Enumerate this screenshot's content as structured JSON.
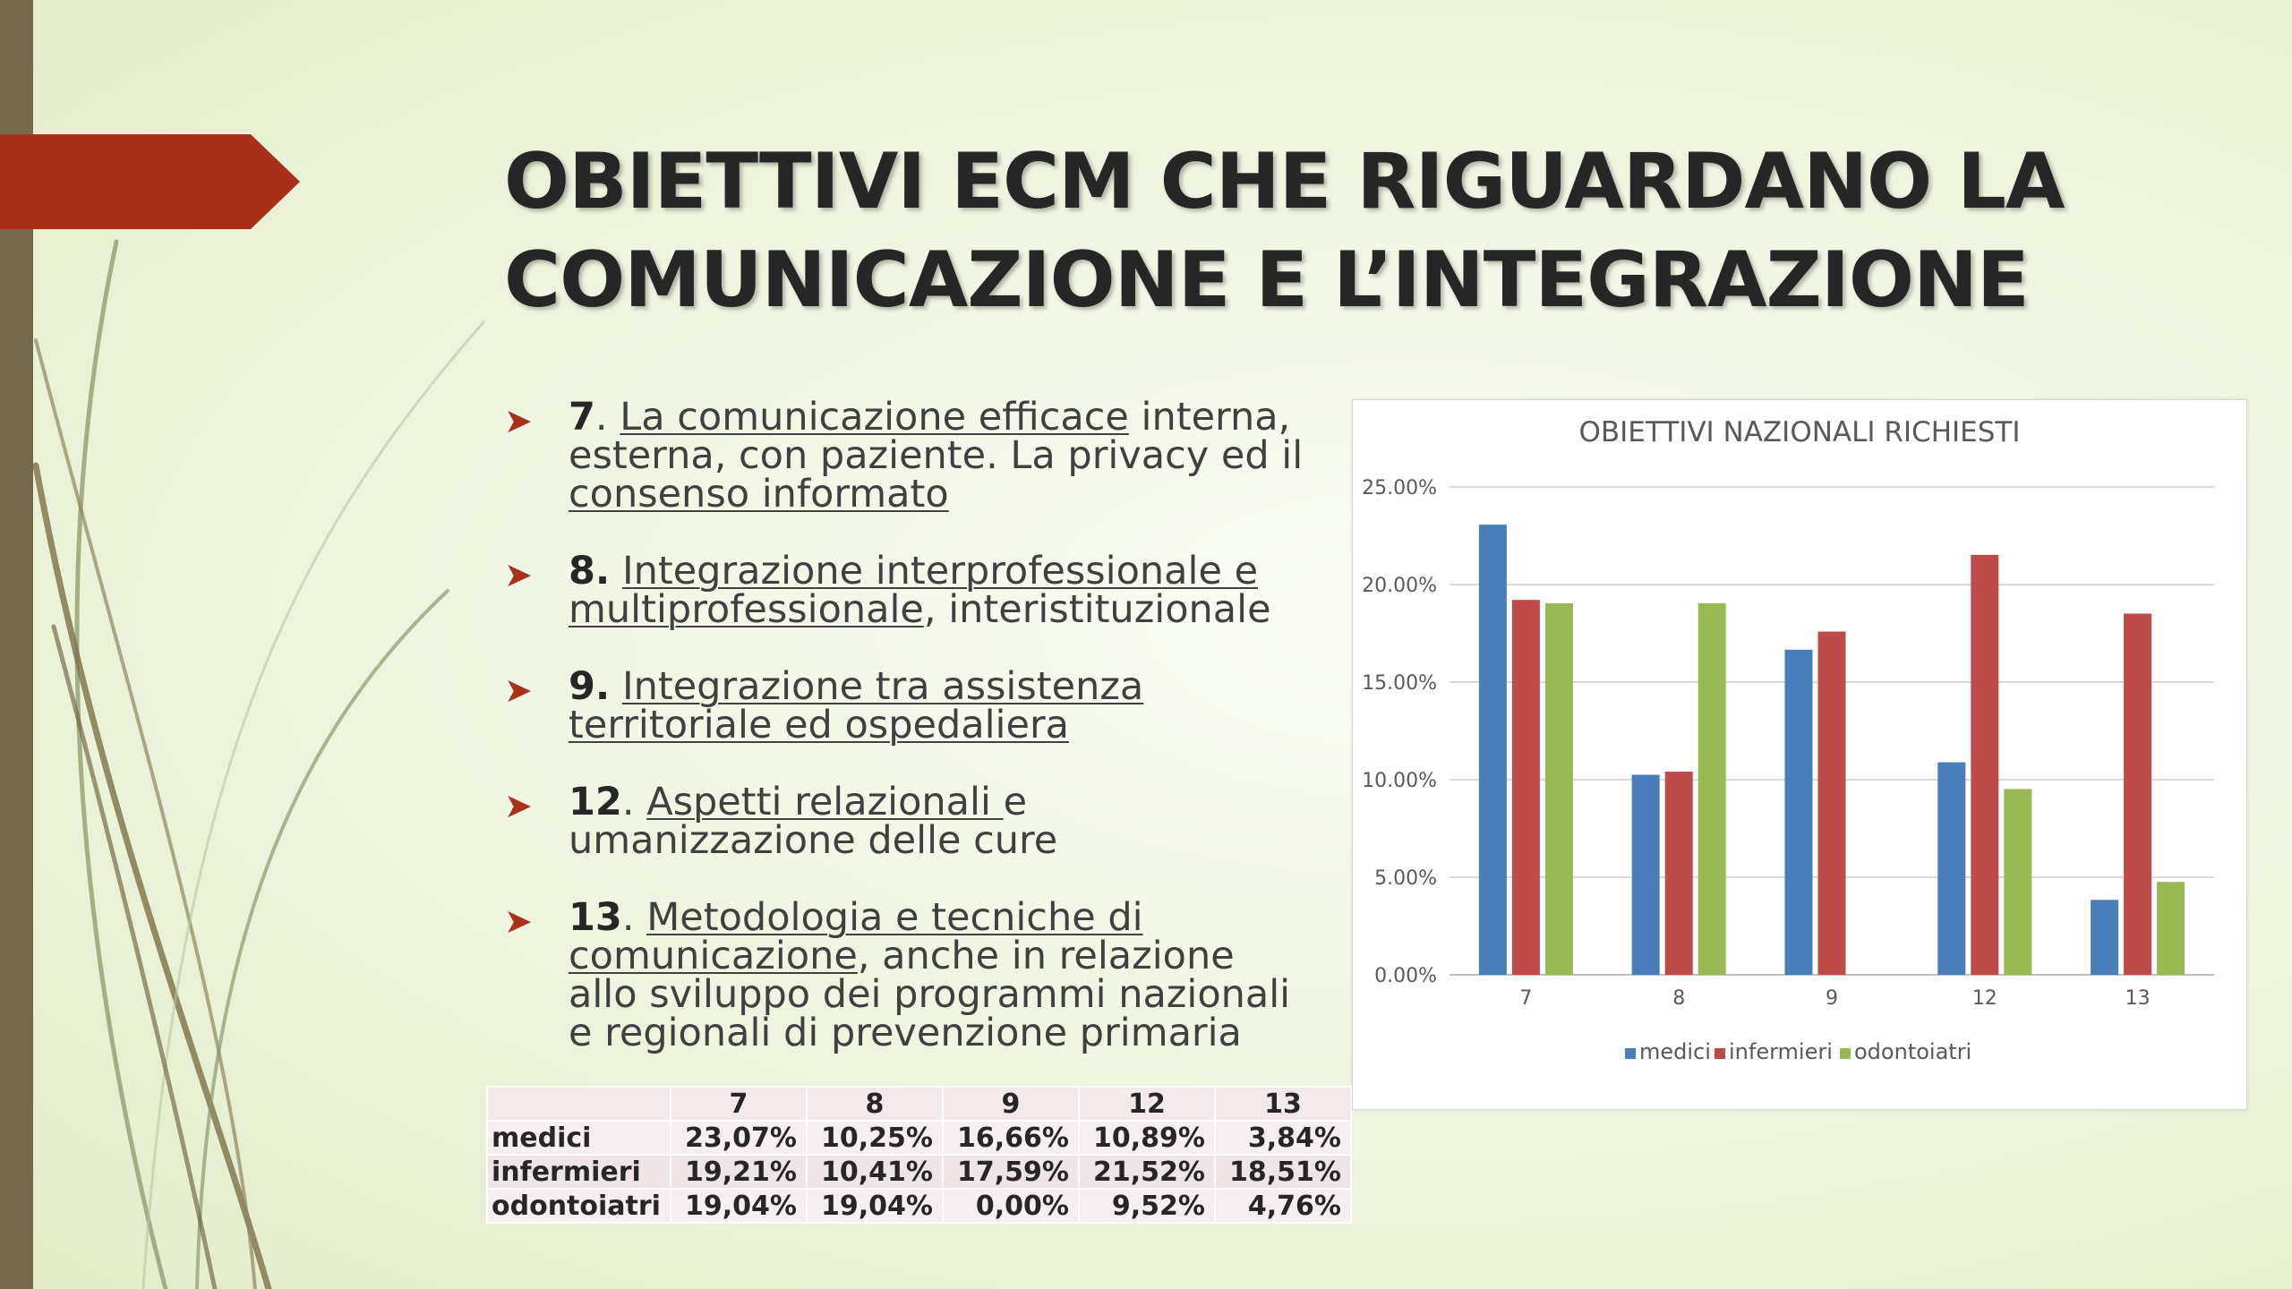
{
  "slide": {
    "title_line1": "OBIETTIVI ECM CHE RIGUARDANO LA",
    "title_line2": "COMUNICAZIONE E L’INTEGRAZIONE",
    "accent_color": "#a9301a",
    "bar_color": "#75694c",
    "bullet_icon": "arrow-right-icon"
  },
  "bullets": [
    {
      "num": "7",
      "sep": ". ",
      "u1": "La comunicazione efficace",
      "t1": " interna, esterna, con paziente. La privacy ed il ",
      "u2": "consenso informato",
      "t2": ""
    },
    {
      "num": "8.",
      "sep": " ",
      "u1": "Integrazione interprofessionale e multiprofessionale",
      "t1": ", interistituzionale",
      "u2": "",
      "t2": ""
    },
    {
      "num": "9.",
      "sep": " ",
      "u1": "Integrazione tra assistenza territoriale ed ospedaliera",
      "t1": "",
      "u2": "",
      "t2": ""
    },
    {
      "num": "12",
      "sep": ". ",
      "u1": "Aspetti relazionali ",
      "t1": "e umanizzazione delle cure",
      "u2": "",
      "t2": ""
    },
    {
      "num": "13",
      "sep": ". ",
      "u1": "Metodologia e tecniche di comunicazione",
      "t1": ", anche in relazione allo sviluppo dei programmi nazionali e regionali di prevenzione primaria",
      "u2": "",
      "t2": ""
    }
  ],
  "table": {
    "headers": [
      "",
      "7",
      "8",
      "9",
      "12",
      "13"
    ],
    "rows": [
      {
        "label": "medici",
        "values": [
          "23,07%",
          "10,25%",
          "16,66%",
          "10,89%",
          "3,84%"
        ]
      },
      {
        "label": "infermieri",
        "values": [
          "19,21%",
          "10,41%",
          "17,59%",
          "21,52%",
          "18,51%"
        ]
      },
      {
        "label": "odontoiatri",
        "values": [
          "19,04%",
          "19,04%",
          "0,00%",
          "9,52%",
          "4,76%"
        ]
      }
    ]
  },
  "chart_data": {
    "type": "bar",
    "title": "OBIETTIVI NAZIONALI RICHIESTI",
    "categories": [
      "7",
      "8",
      "9",
      "12",
      "13"
    ],
    "series": [
      {
        "name": "medici",
        "color": "#4a7ebb",
        "values": [
          23.07,
          10.25,
          16.66,
          10.89,
          3.84
        ]
      },
      {
        "name": "infermieri",
        "color": "#be4b48",
        "values": [
          19.21,
          10.41,
          17.59,
          21.52,
          18.51
        ]
      },
      {
        "name": "odontoiatri",
        "color": "#98b954",
        "values": [
          19.04,
          19.04,
          0.0,
          9.52,
          4.76
        ]
      }
    ],
    "ylim": [
      0,
      25
    ],
    "yticks": [
      "0.00%",
      "5.00%",
      "10.00%",
      "15.00%",
      "20.00%",
      "25.00%"
    ],
    "grid": true,
    "legend_position": "bottom"
  }
}
